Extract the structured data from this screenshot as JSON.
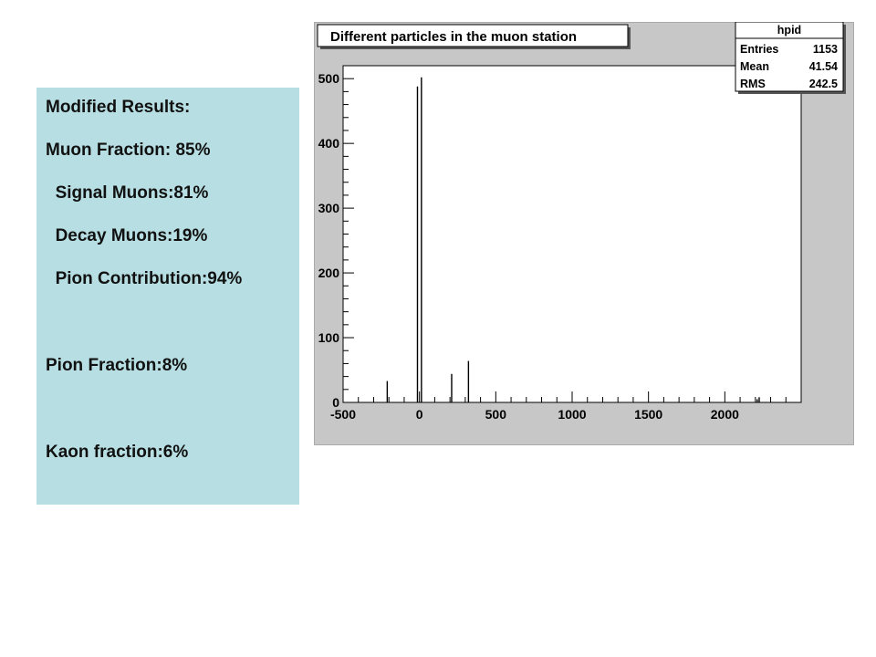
{
  "results": {
    "title": "Modified Results:",
    "muon_fraction": "Muon Fraction: 85%",
    "signal_muons": "  Signal Muons:81%",
    "decay_muons": "  Decay Muons:19%",
    "pion_contribution": "  Pion Contribution:94%",
    "pion_fraction": "Pion Fraction:8%",
    "kaon_fraction": "Kaon fraction:6%"
  },
  "colors": {
    "panel_bg": "#b7dfe3",
    "plot_area": "#ffffff",
    "frame": "#c7c7c7",
    "bars": "#000000"
  },
  "chart_data": {
    "type": "bar",
    "title": "Different particles in the muon station",
    "xlabel": "",
    "ylabel": "",
    "xlim": [
      -500,
      2500
    ],
    "ylim": [
      0,
      520
    ],
    "x_ticks": [
      -500,
      0,
      500,
      1000,
      1500,
      2000
    ],
    "y_ticks": [
      0,
      100,
      200,
      300,
      400,
      500
    ],
    "grid": false,
    "spikes": [
      {
        "x": -211,
        "value": 33
      },
      {
        "x": -13,
        "value": 488
      },
      {
        "x": 13,
        "value": 502
      },
      {
        "x": 211,
        "value": 44
      },
      {
        "x": 321,
        "value": 64
      },
      {
        "x": 2212,
        "value": 5
      },
      {
        "x": 2225,
        "value": 8
      }
    ],
    "stats_box": {
      "name": "hpid",
      "rows": [
        {
          "label": "Entries",
          "value": "1153"
        },
        {
          "label": "Mean",
          "value": "41.54"
        },
        {
          "label": "RMS",
          "value": "242.5"
        }
      ]
    }
  }
}
